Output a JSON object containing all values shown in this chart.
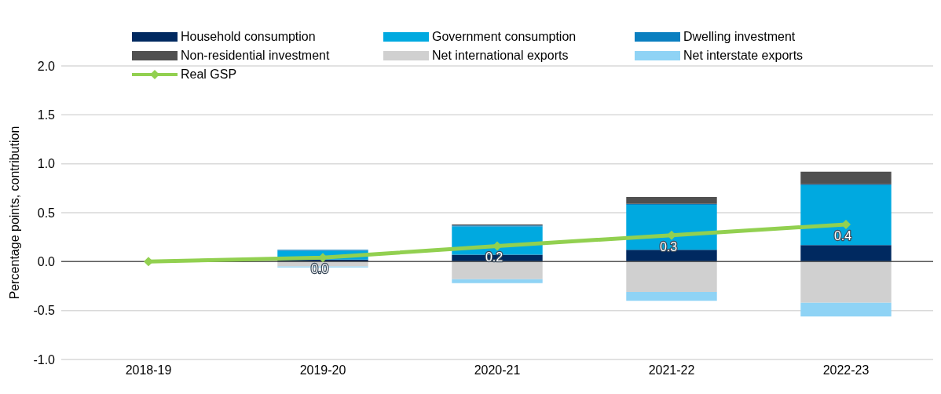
{
  "chart_data": {
    "type": "bar",
    "stacked": true,
    "ylabel": "Percentage points, contribution",
    "categories": [
      "2018-19",
      "2019-20",
      "2020-21",
      "2021-22",
      "2022-23"
    ],
    "ylim": [
      -1.0,
      2.0
    ],
    "yticks": [
      {
        "value": -1.0,
        "label": "-1.0"
      },
      {
        "value": -0.5,
        "label": "-0.5"
      },
      {
        "value": 0,
        "label": "0.0"
      },
      {
        "value": 0.5,
        "label": "0.5"
      },
      {
        "value": 1.0,
        "label": "1.0"
      },
      {
        "value": 1.5,
        "label": "1.5"
      },
      {
        "value": 2.0,
        "label": "2.0"
      }
    ],
    "grid": "y",
    "legend": "top left",
    "ref_lines": [
      {
        "axis": "y",
        "value": 0,
        "label": null,
        "color": "#595959"
      }
    ],
    "series": [
      {
        "name": "Household consumption",
        "color": "#002960",
        "values": [
          0,
          0.02,
          0.07,
          0.12,
          0.17
        ]
      },
      {
        "name": "Government consumption",
        "color": "#00a9e0",
        "values": [
          0,
          0.09,
          0.29,
          0.46,
          0.61
        ]
      },
      {
        "name": "Dwelling investment",
        "color": "#0a7fc0",
        "values": [
          0,
          0.01,
          0.01,
          0.01,
          0.01
        ]
      },
      {
        "name": "Non-residential investment",
        "color": "#505050",
        "values": [
          0,
          0,
          0.01,
          0.07,
          0.13
        ]
      },
      {
        "name": "Net international exports",
        "color": "#d0d0d0",
        "values": [
          0,
          -0.05,
          -0.18,
          -0.31,
          -0.42
        ]
      },
      {
        "name": "Net interstate exports",
        "color": "#8fd3f5",
        "values": [
          0,
          -0.01,
          -0.04,
          -0.09,
          -0.14
        ]
      },
      {
        "name": "Real GSP",
        "type": "line",
        "color": "#92d050",
        "marker": "diamond",
        "values": [
          0,
          0.04,
          0.16,
          0.27,
          0.38
        ],
        "value_labels": [
          null,
          "0.0",
          "0.2",
          "0.3",
          "0.4"
        ]
      }
    ]
  }
}
